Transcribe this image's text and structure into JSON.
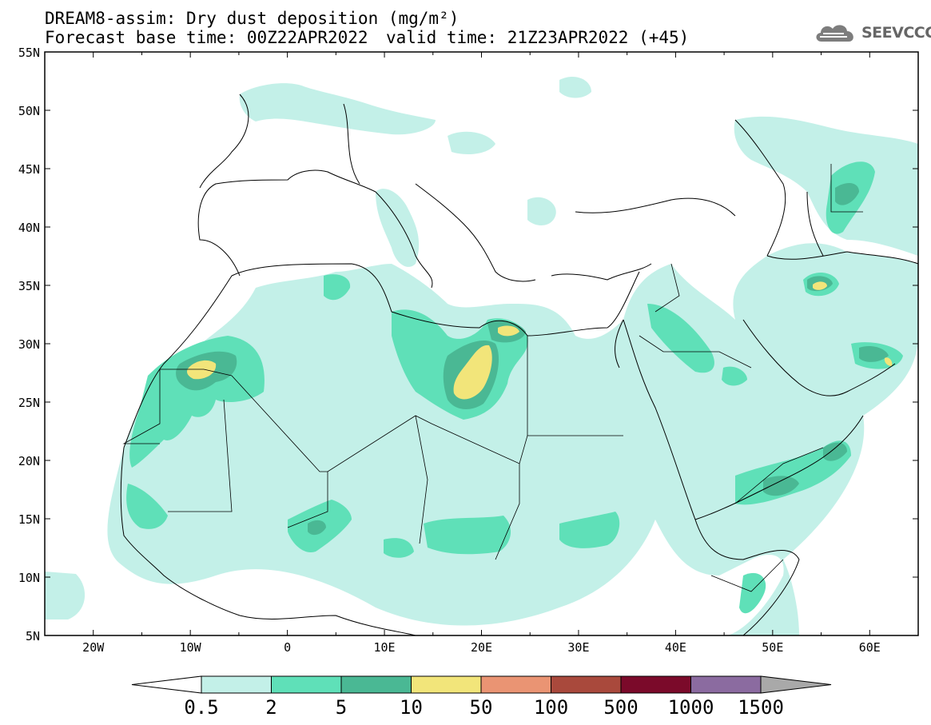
{
  "header": {
    "title": "DREAM8-assim: Dry dust deposition (mg/m²)",
    "forecast_base": "Forecast base time: 00Z22APR2022",
    "valid_time": "valid time: 21Z23APR2022 (+45)",
    "logo_text": "SEEVCCC",
    "logo_icon": "cloud-icon"
  },
  "map": {
    "lat_labels": [
      "55N",
      "50N",
      "45N",
      "40N",
      "35N",
      "30N",
      "25N",
      "20N",
      "15N",
      "10N",
      "5N"
    ],
    "lon_labels": [
      "20W",
      "10W",
      "0",
      "10E",
      "20E",
      "30E",
      "40E",
      "50E",
      "60E"
    ],
    "lat_range": [
      5,
      55
    ],
    "lon_range": [
      -25,
      65
    ]
  },
  "colorbar": {
    "labels": [
      "0.5",
      "2",
      "5",
      "10",
      "50",
      "100",
      "500",
      "1000",
      "1500"
    ],
    "colors": [
      "#c3f0e8",
      "#5fe0b8",
      "#4ab894",
      "#f2e57a",
      "#ea9473",
      "#a9493c",
      "#7b0a2a",
      "#8b6ba0",
      "#a9a9a9"
    ],
    "under_color": "#ffffff",
    "over_color": "#a9a9a9"
  }
}
